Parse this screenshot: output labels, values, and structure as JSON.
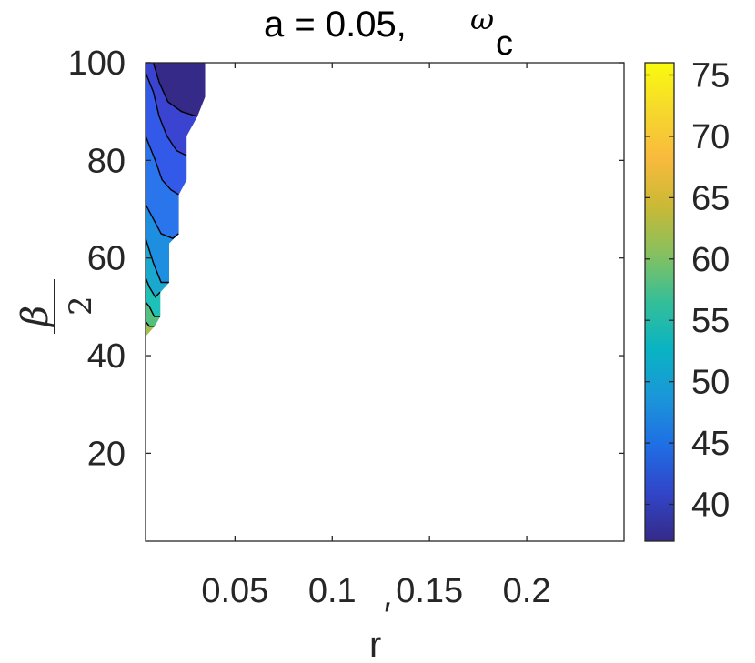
{
  "chart_data": {
    "type": "heatmap",
    "subtype": "filled-contour",
    "title": {
      "prefix": "a = 0.05,",
      "symbol": "ω",
      "subscript": "c"
    },
    "xlabel": {
      "main": "r",
      "prime": "′"
    },
    "ylabel": {
      "numerator": "β",
      "denominator": "2"
    },
    "xlim": [
      0.004,
      0.25
    ],
    "ylim": [
      2,
      100
    ],
    "xticks": [
      0.05,
      0.1,
      0.15,
      0.2
    ],
    "xtick_labels": [
      "0.05",
      "0.1",
      "0.15",
      "0.2"
    ],
    "yticks": [
      20,
      40,
      60,
      80,
      100
    ],
    "ytick_labels": [
      "20",
      "40",
      "60",
      "80",
      "100"
    ],
    "colorbar": {
      "range": [
        37,
        76
      ],
      "ticks": [
        40,
        45,
        50,
        55,
        60,
        65,
        70,
        75
      ],
      "tick_labels": [
        "40",
        "45",
        "50",
        "55",
        "60",
        "65",
        "70",
        "75"
      ],
      "colormap": "parula",
      "stops": [
        "#352a87",
        "#3145c8",
        "#1f6ee4",
        "#1b96d9",
        "#09b3c4",
        "#34bf98",
        "#86c05f",
        "#cab935",
        "#f8ba3d",
        "#f6d82c",
        "#f9fb0e"
      ]
    },
    "region_boundary": [
      [
        0.004,
        100
      ],
      [
        0.0345,
        100
      ],
      [
        0.0345,
        93
      ],
      [
        0.0305,
        89
      ],
      [
        0.025,
        85
      ],
      [
        0.025,
        76
      ],
      [
        0.021,
        73
      ],
      [
        0.021,
        65
      ],
      [
        0.016,
        63
      ],
      [
        0.016,
        55
      ],
      [
        0.0115,
        53
      ],
      [
        0.0115,
        48
      ],
      [
        0.0085,
        46
      ],
      [
        0.004,
        44
      ]
    ],
    "contour_bands": [
      {
        "value": 38,
        "color": "#352a87",
        "boundary": [
          [
            0.004,
            100
          ],
          [
            0.0345,
            100
          ],
          [
            0.0345,
            93
          ],
          [
            0.0305,
            89
          ],
          [
            0.0225,
            90
          ],
          [
            0.0155,
            92
          ],
          [
            0.011,
            96
          ],
          [
            0.008,
            100
          ]
        ]
      },
      {
        "value": 41.5,
        "color": "#3a44d0",
        "boundary": [
          [
            0.004,
            100
          ],
          [
            0.008,
            100
          ],
          [
            0.011,
            96
          ],
          [
            0.0155,
            92
          ],
          [
            0.0225,
            90
          ],
          [
            0.0305,
            89
          ],
          [
            0.025,
            85
          ],
          [
            0.025,
            81
          ],
          [
            0.02,
            82
          ],
          [
            0.015,
            85
          ],
          [
            0.011,
            89
          ],
          [
            0.008,
            94
          ],
          [
            0.004,
            98
          ]
        ]
      },
      {
        "value": 45,
        "color": "#3359e8",
        "boundary": [
          [
            0.004,
            98
          ],
          [
            0.008,
            94
          ],
          [
            0.011,
            89
          ],
          [
            0.015,
            85
          ],
          [
            0.02,
            82
          ],
          [
            0.025,
            81
          ],
          [
            0.025,
            76
          ],
          [
            0.021,
            73
          ],
          [
            0.017,
            74
          ],
          [
            0.0125,
            76
          ],
          [
            0.009,
            80
          ],
          [
            0.004,
            85
          ]
        ]
      },
      {
        "value": 49,
        "color": "#2a74ec",
        "boundary": [
          [
            0.004,
            85
          ],
          [
            0.009,
            80
          ],
          [
            0.0125,
            76
          ],
          [
            0.017,
            74
          ],
          [
            0.021,
            73
          ],
          [
            0.021,
            65
          ],
          [
            0.018,
            64
          ],
          [
            0.012,
            65
          ],
          [
            0.008,
            68
          ],
          [
            0.004,
            71
          ]
        ]
      },
      {
        "value": 52,
        "color": "#1e8ee1",
        "boundary": [
          [
            0.004,
            71
          ],
          [
            0.008,
            68
          ],
          [
            0.012,
            65
          ],
          [
            0.018,
            64
          ],
          [
            0.021,
            65
          ],
          [
            0.016,
            63
          ],
          [
            0.016,
            55
          ],
          [
            0.012,
            55
          ],
          [
            0.008,
            59
          ],
          [
            0.004,
            64
          ]
        ]
      },
      {
        "value": 55,
        "color": "#1ba8cf",
        "boundary": [
          [
            0.004,
            64
          ],
          [
            0.008,
            59
          ],
          [
            0.012,
            55
          ],
          [
            0.016,
            55
          ],
          [
            0.0115,
            53
          ],
          [
            0.009,
            52
          ],
          [
            0.006,
            54
          ],
          [
            0.004,
            56
          ]
        ]
      },
      {
        "value": 58,
        "color": "#1fc0b8",
        "boundary": [
          [
            0.004,
            56
          ],
          [
            0.006,
            54
          ],
          [
            0.009,
            52
          ],
          [
            0.0115,
            53
          ],
          [
            0.0115,
            48
          ],
          [
            0.0085,
            48
          ],
          [
            0.006,
            50
          ],
          [
            0.004,
            51
          ]
        ]
      },
      {
        "value": 61,
        "color": "#52c180",
        "boundary": [
          [
            0.004,
            51
          ],
          [
            0.006,
            50
          ],
          [
            0.0085,
            48
          ],
          [
            0.0115,
            48
          ],
          [
            0.0085,
            46
          ],
          [
            0.006,
            46
          ],
          [
            0.004,
            47
          ]
        ]
      },
      {
        "value": 64,
        "color": "#9fbf4f",
        "boundary": [
          [
            0.004,
            47
          ],
          [
            0.006,
            46
          ],
          [
            0.0085,
            46
          ],
          [
            0.004,
            44
          ]
        ]
      }
    ],
    "contour_lines": [
      [
        [
          0.008,
          100
        ],
        [
          0.011,
          96
        ],
        [
          0.0155,
          92
        ],
        [
          0.0225,
          90
        ],
        [
          0.0305,
          89
        ]
      ],
      [
        [
          0.004,
          98
        ],
        [
          0.008,
          94
        ],
        [
          0.011,
          89
        ],
        [
          0.015,
          85
        ],
        [
          0.02,
          82
        ],
        [
          0.025,
          81
        ]
      ],
      [
        [
          0.004,
          85
        ],
        [
          0.009,
          80
        ],
        [
          0.0125,
          76
        ],
        [
          0.017,
          74
        ],
        [
          0.021,
          73
        ]
      ],
      [
        [
          0.004,
          71
        ],
        [
          0.008,
          68
        ],
        [
          0.012,
          65
        ],
        [
          0.018,
          64
        ],
        [
          0.021,
          65
        ]
      ],
      [
        [
          0.004,
          64
        ],
        [
          0.008,
          59
        ],
        [
          0.012,
          55
        ],
        [
          0.016,
          55
        ]
      ],
      [
        [
          0.004,
          56
        ],
        [
          0.006,
          54
        ],
        [
          0.009,
          52
        ],
        [
          0.0115,
          53
        ]
      ],
      [
        [
          0.004,
          51
        ],
        [
          0.006,
          50
        ],
        [
          0.0085,
          48
        ],
        [
          0.0115,
          48
        ]
      ],
      [
        [
          0.004,
          47
        ],
        [
          0.006,
          46
        ],
        [
          0.0085,
          46
        ]
      ]
    ]
  }
}
